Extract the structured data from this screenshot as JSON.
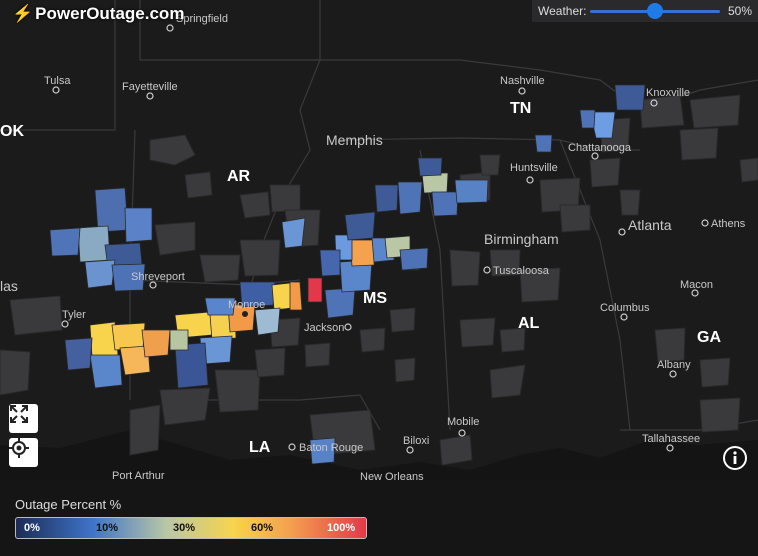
{
  "brand": {
    "name": "PowerOutage.com",
    "icon": "lightning-bolt-icon"
  },
  "weather": {
    "label": "Weather:",
    "value_label": "50%",
    "level": 0.5
  },
  "cities": [
    {
      "name": "Springfield"
    },
    {
      "name": "Tulsa"
    },
    {
      "name": "Fayetteville"
    },
    {
      "name": "Nashville"
    },
    {
      "name": "Knoxville"
    },
    {
      "name": "Memphis"
    },
    {
      "name": "Chattanooga"
    },
    {
      "name": "Huntsville"
    },
    {
      "name": "Atlanta"
    },
    {
      "name": "Athens"
    },
    {
      "name": "Birmingham"
    },
    {
      "name": "Tuscaloosa"
    },
    {
      "name": "Shreveport"
    },
    {
      "name": "Monroe"
    },
    {
      "name": "Tyler"
    },
    {
      "name": "Jackson"
    },
    {
      "name": "Columbus"
    },
    {
      "name": "Macon"
    },
    {
      "name": "Albany"
    },
    {
      "name": "Mobile"
    },
    {
      "name": "Biloxi"
    },
    {
      "name": "Baton Rouge"
    },
    {
      "name": "Tallahassee"
    },
    {
      "name": "Port Arthur"
    },
    {
      "name": "New Orleans"
    },
    {
      "name": "las"
    }
  ],
  "states": [
    "OK",
    "TN",
    "AR",
    "MS",
    "AL",
    "GA",
    "LA"
  ],
  "legend": {
    "title": "Outage Percent %",
    "stops": [
      "0%",
      "10%",
      "30%",
      "60%",
      "100%"
    ],
    "colors": [
      "#1c2c55",
      "#3f74c9",
      "#b9c7a5",
      "#f7d44c",
      "#f4a24e",
      "#e3384a"
    ]
  }
}
